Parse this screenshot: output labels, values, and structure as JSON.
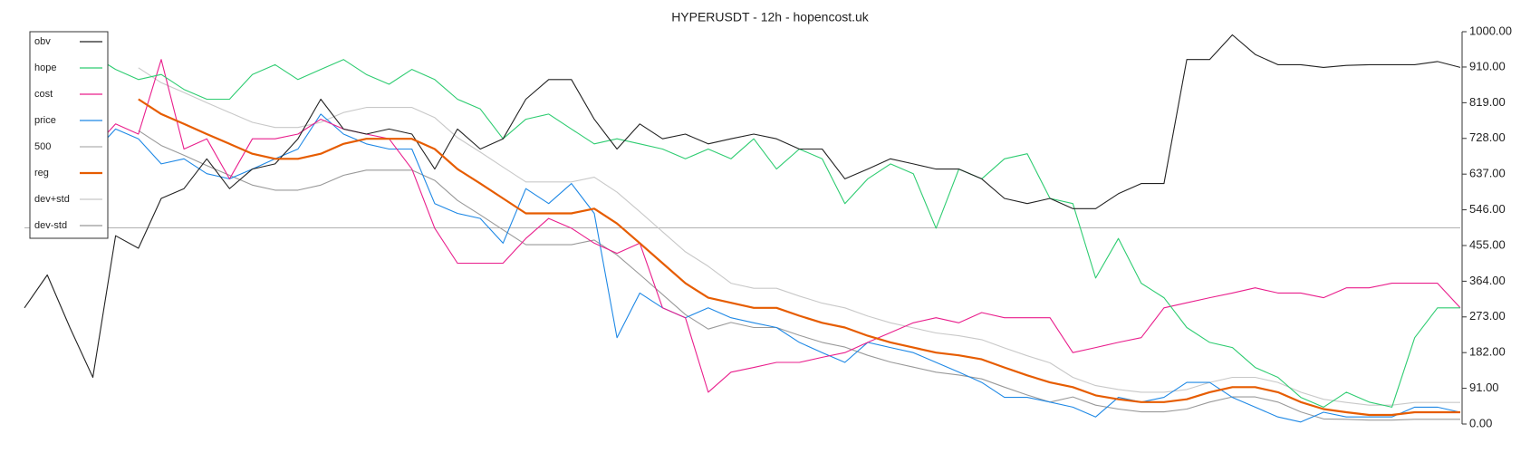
{
  "chart_data": {
    "type": "line",
    "title": "HYPERUSDT - 12h - hopencost.uk",
    "ylim": [
      0,
      1000
    ],
    "yticks": [
      {
        "value": 0,
        "label": "0.00"
      },
      {
        "value": 91,
        "label": "91.00"
      },
      {
        "value": 182,
        "label": "182.00"
      },
      {
        "value": 273,
        "label": "273.00"
      },
      {
        "value": 364,
        "label": "364.00"
      },
      {
        "value": 455,
        "label": "455.00"
      },
      {
        "value": 546,
        "label": "546.00"
      },
      {
        "value": 637,
        "label": "637.00"
      },
      {
        "value": 728,
        "label": "728.00"
      },
      {
        "value": 819,
        "label": "819.00"
      },
      {
        "value": 910,
        "label": "910.00"
      },
      {
        "value": 1000,
        "label": "1000.00"
      }
    ],
    "legend": "upper left",
    "series": [
      {
        "name": "obv",
        "color": "#222222",
        "values": [
          296,
          380,
          245,
          119,
          480,
          448,
          575,
          600,
          676,
          600,
          650,
          663,
          727,
          828,
          752,
          739,
          752,
          739,
          650,
          752,
          701,
          727,
          828,
          878,
          878,
          777,
          701,
          765,
          727,
          739,
          714,
          727,
          739,
          727,
          701,
          701,
          625,
          650,
          676,
          663,
          650,
          650,
          625,
          575,
          562,
          575,
          549,
          549,
          587,
          613,
          613,
          929,
          929,
          992,
          942,
          916,
          916,
          909,
          914,
          916,
          916,
          916,
          924,
          909
        ]
      },
      {
        "name": "hope",
        "color": "#2ecc71",
        "values": [
          null,
          null,
          null,
          940,
          904,
          878,
          891,
          853,
          828,
          828,
          891,
          916,
          878,
          904,
          929,
          891,
          866,
          904,
          878,
          828,
          803,
          727,
          777,
          790,
          752,
          714,
          727,
          714,
          701,
          676,
          701,
          676,
          727,
          650,
          701,
          676,
          562,
          625,
          663,
          638,
          499,
          650,
          625,
          676,
          689,
          575,
          562,
          372,
          473,
          359,
          322,
          246,
          208,
          195,
          144,
          119,
          68,
          43,
          81,
          56,
          43,
          220,
          296,
          296
        ]
      },
      {
        "name": "cost",
        "color": "#e91e8c",
        "values": [
          null,
          null,
          null,
          701,
          765,
          739,
          929,
          701,
          727,
          625,
          727,
          727,
          739,
          777,
          752,
          739,
          727,
          650,
          499,
          410,
          410,
          410,
          473,
          524,
          499,
          461,
          435,
          461,
          296,
          271,
          81,
          132,
          144,
          157,
          157,
          170,
          182,
          208,
          233,
          258,
          271,
          258,
          284,
          271,
          271,
          271,
          182,
          195,
          208,
          220,
          296,
          309,
          322,
          334,
          347,
          334,
          334,
          322,
          347,
          347,
          359,
          359,
          359,
          296
        ]
      },
      {
        "name": "price",
        "color": "#1e88e5",
        "values": [
          null,
          null,
          null,
          689,
          752,
          727,
          663,
          676,
          638,
          625,
          650,
          676,
          701,
          790,
          739,
          714,
          701,
          701,
          562,
          537,
          524,
          461,
          600,
          562,
          613,
          537,
          220,
          334,
          296,
          271,
          296,
          271,
          258,
          246,
          208,
          182,
          157,
          208,
          195,
          182,
          157,
          132,
          106,
          68,
          68,
          56,
          43,
          18,
          68,
          56,
          68,
          106,
          106,
          68,
          43,
          18,
          5,
          30,
          18,
          18,
          18,
          43,
          43,
          30
        ]
      },
      {
        "name": "500",
        "color": "#b0b0b0",
        "values": [
          500,
          500,
          500,
          500,
          500,
          500,
          500,
          500,
          500,
          500,
          500,
          500,
          500,
          500,
          500,
          500,
          500,
          500,
          500,
          500,
          500,
          500,
          500,
          500,
          500,
          500,
          500,
          500,
          500,
          500,
          500,
          500,
          500,
          500,
          500,
          500,
          500,
          500,
          500,
          500,
          500,
          500,
          500,
          500,
          500,
          500,
          500,
          500,
          500,
          500,
          500,
          500,
          500,
          500,
          500,
          500,
          500,
          500,
          500,
          500,
          500,
          500,
          500,
          500
        ]
      },
      {
        "name": "reg",
        "color": "#e65c00",
        "values": [
          null,
          null,
          null,
          null,
          null,
          828,
          790,
          765,
          739,
          714,
          689,
          676,
          676,
          689,
          714,
          727,
          727,
          727,
          701,
          650,
          613,
          575,
          537,
          537,
          537,
          549,
          511,
          461,
          410,
          359,
          322,
          309,
          296,
          296,
          276,
          258,
          246,
          225,
          208,
          195,
          182,
          175,
          165,
          144,
          124,
          106,
          94,
          73,
          63,
          56,
          56,
          63,
          81,
          94,
          94,
          81,
          56,
          38,
          30,
          23,
          23,
          30,
          30,
          30
        ]
      },
      {
        "name": "dev+std",
        "color": "#c8c8c8",
        "values": [
          null,
          null,
          null,
          null,
          null,
          908,
          870,
          845,
          819,
          794,
          769,
          756,
          756,
          769,
          794,
          807,
          807,
          807,
          781,
          730,
          693,
          655,
          617,
          617,
          617,
          629,
          591,
          541,
          490,
          439,
          402,
          359,
          346,
          346,
          326,
          308,
          296,
          275,
          258,
          245,
          232,
          225,
          215,
          194,
          174,
          156,
          119,
          98,
          88,
          81,
          81,
          88,
          106,
          119,
          119,
          106,
          81,
          63,
          55,
          48,
          48,
          55,
          55,
          55
        ]
      },
      {
        "name": "dev-std",
        "color": "#999999",
        "values": [
          null,
          null,
          null,
          null,
          null,
          748,
          710,
          685,
          659,
          634,
          609,
          596,
          596,
          609,
          634,
          647,
          647,
          647,
          621,
          570,
          533,
          495,
          457,
          457,
          457,
          469,
          431,
          381,
          330,
          279,
          242,
          259,
          246,
          246,
          226,
          208,
          196,
          175,
          158,
          145,
          132,
          125,
          115,
          94,
          74,
          56,
          69,
          48,
          38,
          31,
          31,
          38,
          56,
          69,
          69,
          56,
          31,
          13,
          12,
          10,
          10,
          12,
          12,
          12
        ]
      }
    ]
  }
}
